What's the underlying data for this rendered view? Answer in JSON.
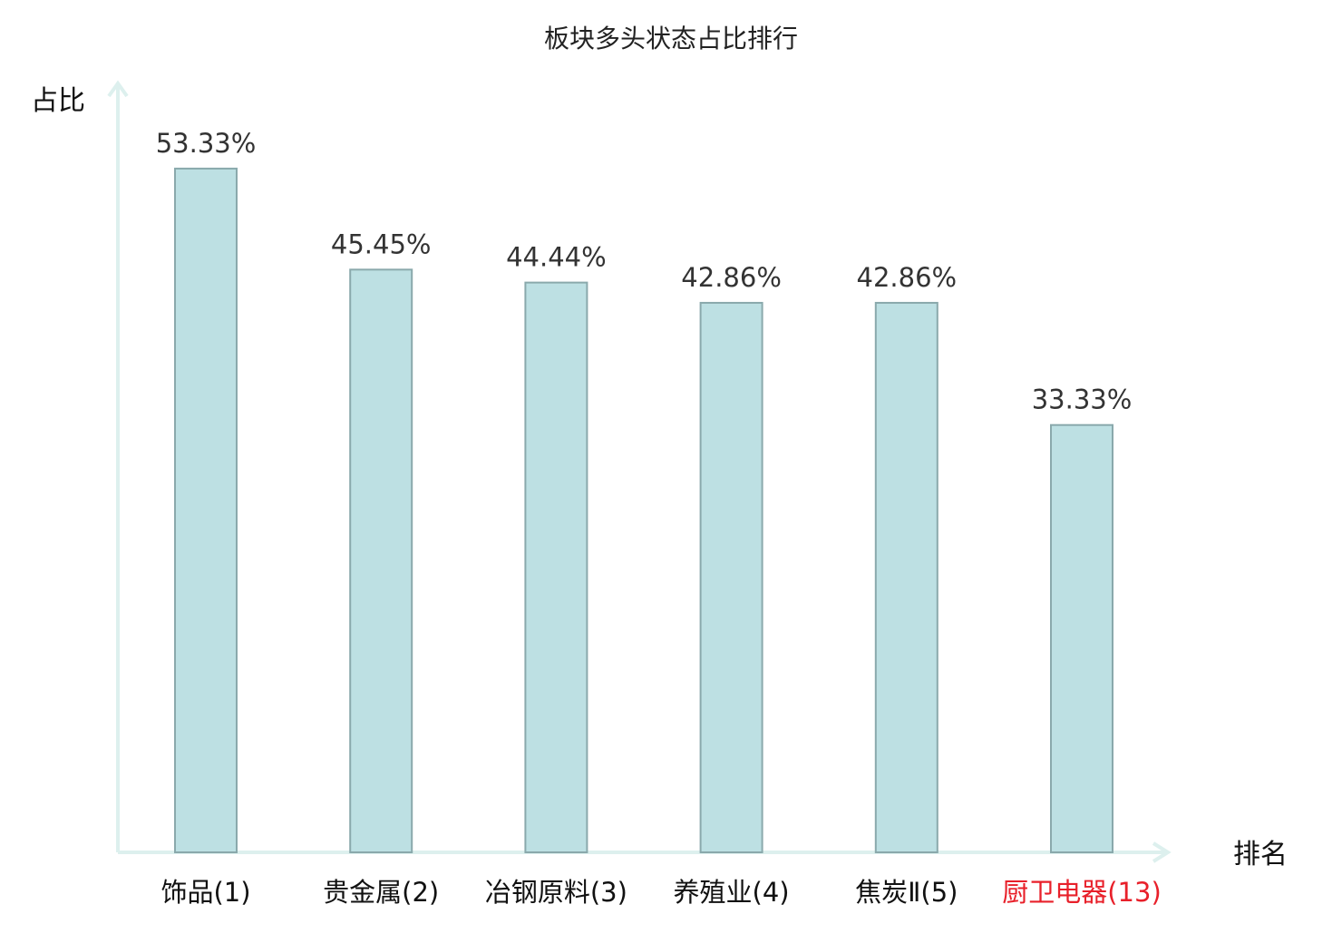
{
  "chart_data": {
    "type": "bar",
    "title": "板块多头状态占比排行",
    "ylabel": "占比",
    "xlabel": "排名",
    "categories": [
      "饰品(1)",
      "贵金属(2)",
      "冶钢原料(3)",
      "养殖业(4)",
      "焦炭Ⅱ(5)",
      "厨卫电器(13)"
    ],
    "values": [
      53.33,
      45.45,
      44.44,
      42.86,
      42.86,
      33.33
    ],
    "value_labels": [
      "53.33%",
      "45.45%",
      "44.44%",
      "42.86%",
      "42.86%",
      "33.33%"
    ],
    "ylim": [
      0,
      60
    ],
    "grid": false,
    "highlight_index": 5,
    "colors": {
      "bar_fill": "#bde0e3",
      "bar_stroke": "#8aa9ac",
      "axis": "#ddf0ee",
      "highlight_text": "#e8202a",
      "default_text": "#111111"
    }
  }
}
